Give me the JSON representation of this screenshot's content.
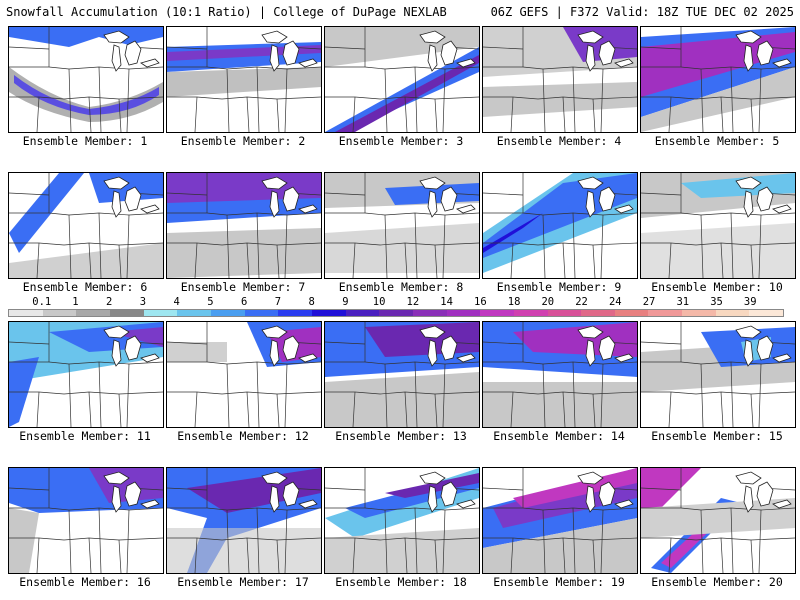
{
  "header": {
    "left": "Snowfall Accumulation (10:1 Ratio) | College of DuPage NEXLAB",
    "right": "06Z GEFS | F372 Valid: 18Z TUE DEC 02 2025"
  },
  "colorbar": {
    "ticks": [
      "0.1",
      "1",
      "2",
      "3",
      "4",
      "5",
      "6",
      "7",
      "8",
      "9",
      "10",
      "12",
      "14",
      "16",
      "18",
      "20",
      "22",
      "24",
      "27",
      "31",
      "35",
      "39"
    ],
    "colors": [
      "#e8e8e8",
      "#c8c8c8",
      "#a8a8a8",
      "#888888",
      "#9ee6f0",
      "#6ac4ec",
      "#4a9ef0",
      "#3a6ef4",
      "#2a3cf0",
      "#2010d8",
      "#4a20c0",
      "#6a28b0",
      "#8a30b8",
      "#a030c0",
      "#c038c0",
      "#d040b0",
      "#d85098",
      "#e06888",
      "#e88080",
      "#f09898",
      "#f4b8a8",
      "#f8d8c0",
      "#fce8d8"
    ]
  },
  "panels": [
    {
      "label": "Ensemble Member: 1"
    },
    {
      "label": "Ensemble Member: 2"
    },
    {
      "label": "Ensemble Member: 3"
    },
    {
      "label": "Ensemble Member: 4"
    },
    {
      "label": "Ensemble Member: 5"
    },
    {
      "label": "Ensemble Member: 6"
    },
    {
      "label": "Ensemble Member: 7"
    },
    {
      "label": "Ensemble Member: 8"
    },
    {
      "label": "Ensemble Member: 9"
    },
    {
      "label": "Ensemble Member: 10"
    },
    {
      "label": "Ensemble Member: 11"
    },
    {
      "label": "Ensemble Member: 12"
    },
    {
      "label": "Ensemble Member: 13"
    },
    {
      "label": "Ensemble Member: 14"
    },
    {
      "label": "Ensemble Member: 15"
    },
    {
      "label": "Ensemble Member: 16"
    },
    {
      "label": "Ensemble Member: 17"
    },
    {
      "label": "Ensemble Member: 18"
    },
    {
      "label": "Ensemble Member: 19"
    },
    {
      "label": "Ensemble Member: 20"
    }
  ]
}
